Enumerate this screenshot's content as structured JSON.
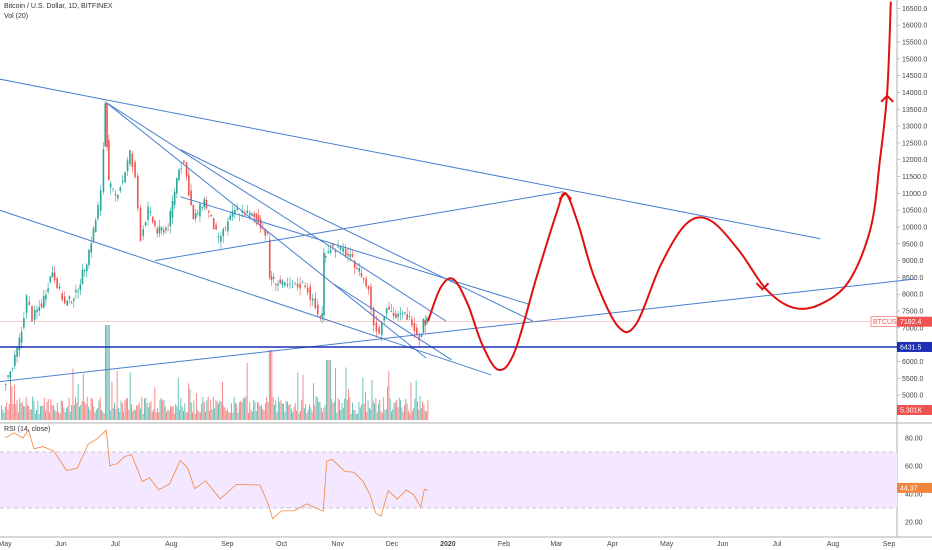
{
  "header": {
    "title": "Bitcoin / U.S. Dollar, 1D, BITFINEX",
    "volume_label": "Vol (20)",
    "rsi_label": "RSI (14, close)"
  },
  "colors": {
    "up": "#26a69a",
    "down": "#ef5350",
    "trendline": "#4a7fd1",
    "support": "#1c2fb5",
    "projection": "#e01010",
    "rsi_line": "#f2853c",
    "rsi_band": "#f3e8ff"
  },
  "price_tags": [
    {
      "label": "BTCUSD",
      "value": "7182.4",
      "color": "#ef5350"
    },
    {
      "label": "",
      "value": "6431.5",
      "color": "#1c2fb5"
    },
    {
      "label": "",
      "value": "5.301K",
      "color": "#ef5350"
    }
  ],
  "rsi_tag": {
    "value": "44.37",
    "color": "#f2853c"
  },
  "chart_data": {
    "type": "line",
    "title": "Bitcoin / U.S. Dollar, 1D, BITFINEX",
    "x_ticks": [
      "May",
      "Jun",
      "Jul",
      "Aug",
      "Sep",
      "Oct",
      "Nov",
      "Dec",
      "2020",
      "Feb",
      "Mar",
      "Apr",
      "May",
      "Jun",
      "Jul",
      "Aug",
      "Sep"
    ],
    "y_ticks": [
      "16500.0",
      "16000.0",
      "15500.0",
      "15000.0",
      "14500.0",
      "14000.0",
      "13500.0",
      "13000.0",
      "12500.0",
      "12000.0",
      "11500.0",
      "11000.0",
      "10500.0",
      "10000.0",
      "9500.0",
      "9000.0",
      "8500.0",
      "8000.0",
      "7500.0",
      "7000.0",
      "6500.0",
      "6000.0",
      "5500.0",
      "5000.0",
      "4500.0"
    ],
    "ylim": [
      4200,
      16750
    ],
    "rsi_ticks": [
      "80.00",
      "60.00",
      "40.00",
      "20.00"
    ],
    "rsi_lim": [
      10,
      90
    ],
    "rsi_band": [
      30,
      70
    ],
    "price_path": [
      [
        "2019-05-01",
        5300
      ],
      [
        "2019-05-06",
        5800
      ],
      [
        "2019-05-11",
        6900
      ],
      [
        "2019-05-14",
        7900
      ],
      [
        "2019-05-17",
        7300
      ],
      [
        "2019-05-22",
        7700
      ],
      [
        "2019-05-28",
        8700
      ],
      [
        "2019-06-04",
        7700
      ],
      [
        "2019-06-10",
        8000
      ],
      [
        "2019-06-16",
        9000
      ],
      [
        "2019-06-21",
        10200
      ],
      [
        "2019-06-24",
        11000
      ],
      [
        "2019-06-26",
        13700
      ],
      [
        "2019-06-28",
        11300
      ],
      [
        "2019-07-02",
        10900
      ],
      [
        "2019-07-06",
        11400
      ],
      [
        "2019-07-10",
        12200
      ],
      [
        "2019-07-13",
        11400
      ],
      [
        "2019-07-16",
        9700
      ],
      [
        "2019-07-20",
        10500
      ],
      [
        "2019-07-25",
        9850
      ],
      [
        "2019-07-31",
        10000
      ],
      [
        "2019-08-06",
        11800
      ],
      [
        "2019-08-09",
        11900
      ],
      [
        "2019-08-14",
        10200
      ],
      [
        "2019-08-20",
        10800
      ],
      [
        "2019-08-28",
        9600
      ],
      [
        "2019-09-06",
        10500
      ],
      [
        "2019-09-13",
        10400
      ],
      [
        "2019-09-19",
        10200
      ],
      [
        "2019-09-24",
        9700
      ],
      [
        "2019-09-25",
        8500
      ],
      [
        "2019-10-01",
        8300
      ],
      [
        "2019-10-08",
        8200
      ],
      [
        "2019-10-15",
        8300
      ],
      [
        "2019-10-22",
        7400
      ],
      [
        "2019-10-24",
        7400
      ],
      [
        "2019-10-25",
        9200
      ],
      [
        "2019-10-29",
        9400
      ],
      [
        "2019-11-05",
        9300
      ],
      [
        "2019-11-10",
        9000
      ],
      [
        "2019-11-15",
        8600
      ],
      [
        "2019-11-19",
        8100
      ],
      [
        "2019-11-22",
        7100
      ],
      [
        "2019-11-25",
        6900
      ],
      [
        "2019-11-29",
        7700
      ],
      [
        "2019-12-04",
        7300
      ],
      [
        "2019-12-09",
        7400
      ],
      [
        "2019-12-13",
        7200
      ],
      [
        "2019-12-17",
        6700
      ],
      [
        "2019-12-19",
        7200
      ],
      [
        "2019-12-21",
        7182.4
      ]
    ],
    "rsi_path": [
      [
        "2019-05-01",
        80
      ],
      [
        "2019-05-06",
        84
      ],
      [
        "2019-05-11",
        82
      ],
      [
        "2019-05-14",
        86
      ],
      [
        "2019-05-17",
        72
      ],
      [
        "2019-05-22",
        74
      ],
      [
        "2019-05-28",
        72
      ],
      [
        "2019-06-04",
        56
      ],
      [
        "2019-06-10",
        60
      ],
      [
        "2019-06-16",
        74
      ],
      [
        "2019-06-21",
        80
      ],
      [
        "2019-06-26",
        86
      ],
      [
        "2019-06-28",
        62
      ],
      [
        "2019-07-02",
        60
      ],
      [
        "2019-07-06",
        66
      ],
      [
        "2019-07-10",
        70
      ],
      [
        "2019-07-16",
        48
      ],
      [
        "2019-07-20",
        52
      ],
      [
        "2019-07-25",
        44
      ],
      [
        "2019-07-31",
        48
      ],
      [
        "2019-08-06",
        62
      ],
      [
        "2019-08-10",
        60
      ],
      [
        "2019-08-14",
        42
      ],
      [
        "2019-08-20",
        48
      ],
      [
        "2019-08-28",
        38
      ],
      [
        "2019-09-06",
        48
      ],
      [
        "2019-09-13",
        47
      ],
      [
        "2019-09-19",
        46
      ],
      [
        "2019-09-24",
        32
      ],
      [
        "2019-09-26",
        24
      ],
      [
        "2019-10-01",
        26
      ],
      [
        "2019-10-08",
        30
      ],
      [
        "2019-10-15",
        34
      ],
      [
        "2019-10-22",
        28
      ],
      [
        "2019-10-24",
        28
      ],
      [
        "2019-10-26",
        64
      ],
      [
        "2019-10-29",
        66
      ],
      [
        "2019-11-05",
        58
      ],
      [
        "2019-11-10",
        54
      ],
      [
        "2019-11-15",
        48
      ],
      [
        "2019-11-19",
        40
      ],
      [
        "2019-11-22",
        28
      ],
      [
        "2019-11-25",
        26
      ],
      [
        "2019-11-29",
        42
      ],
      [
        "2019-12-04",
        36
      ],
      [
        "2019-12-09",
        44
      ],
      [
        "2019-12-13",
        40
      ],
      [
        "2019-12-17",
        30
      ],
      [
        "2019-12-19",
        42
      ],
      [
        "2019-12-21",
        44.37
      ]
    ],
    "trendlines": [
      {
        "name": "upper-resistance",
        "points": [
          [
            "2019-04-23",
            14450
          ],
          [
            "2020-07-25",
            9650
          ]
        ]
      },
      {
        "name": "upper-channel-top",
        "points": [
          [
            "2019-06-26",
            13700
          ],
          [
            "2019-12-31",
            7200
          ]
        ]
      },
      {
        "name": "descending-steep",
        "points": [
          [
            "2019-06-26",
            13700
          ],
          [
            "2019-12-20",
            6100
          ]
        ]
      },
      {
        "name": "mid-channel-top",
        "points": [
          [
            "2019-08-06",
            12300
          ],
          [
            "2020-02-17",
            7200
          ]
        ]
      },
      {
        "name": "mid-channel-bottom",
        "points": [
          [
            "2019-08-06",
            10900
          ],
          [
            "2020-02-15",
            7700
          ]
        ]
      },
      {
        "name": "lower-channel",
        "points": [
          [
            "2019-04-28",
            10500
          ],
          [
            "2020-01-25",
            5600
          ]
        ]
      },
      {
        "name": "rising-wedge",
        "points": [
          [
            "2019-07-23",
            9000
          ],
          [
            "2020-03-05",
            11050
          ]
        ]
      },
      {
        "name": "long-support",
        "points": [
          [
            "2019-04-28",
            5400
          ],
          [
            "2020-09-15",
            8450
          ]
        ]
      },
      {
        "name": "small-falling",
        "points": [
          [
            "2019-10-30",
            8300
          ],
          [
            "2020-01-03",
            6050
          ]
        ]
      }
    ],
    "horizontal_lines": [
      {
        "name": "support-6431",
        "value": 6431.5
      }
    ],
    "projection_path": [
      [
        "2019-12-21",
        7200
      ],
      [
        "2019-12-28",
        8200
      ],
      [
        "2020-01-04",
        8450
      ],
      [
        "2020-01-12",
        7700
      ],
      [
        "2020-01-20",
        6500
      ],
      [
        "2020-01-29",
        5750
      ],
      [
        "2020-02-07",
        6300
      ],
      [
        "2020-02-19",
        8500
      ],
      [
        "2020-03-01",
        10400
      ],
      [
        "2020-03-06",
        11000
      ],
      [
        "2020-03-13",
        10100
      ],
      [
        "2020-03-22",
        8500
      ],
      [
        "2020-04-04",
        7050
      ],
      [
        "2020-04-14",
        7100
      ],
      [
        "2020-04-28",
        8900
      ],
      [
        "2020-05-12",
        10100
      ],
      [
        "2020-05-25",
        10200
      ],
      [
        "2020-06-10",
        9300
      ],
      [
        "2020-06-25",
        8150
      ],
      [
        "2020-07-10",
        7600
      ],
      [
        "2020-07-25",
        7700
      ],
      [
        "2020-08-10",
        8400
      ],
      [
        "2020-08-22",
        10000
      ],
      [
        "2020-08-27",
        12000
      ],
      [
        "2020-08-31",
        14000
      ],
      [
        "2020-09-02",
        16700
      ]
    ]
  }
}
